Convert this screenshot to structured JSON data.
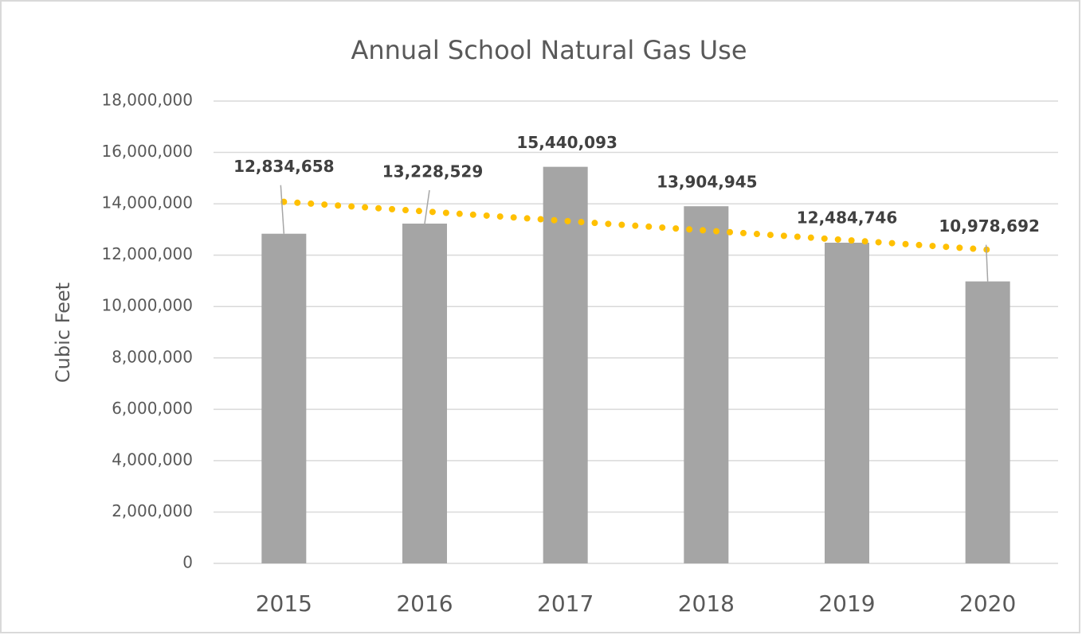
{
  "chart_data": {
    "type": "bar",
    "title": "Annual School Natural Gas Use",
    "y_label": "Cubic Feet",
    "categories": [
      "2015",
      "2016",
      "2017",
      "2018",
      "2019",
      "2020"
    ],
    "values": [
      12834658,
      13228529,
      15440093,
      13904945,
      12484746,
      10978692
    ],
    "value_labels": [
      "12,834,658",
      "13,228,529",
      "15,440,093",
      "13,904,945",
      "12,484,746",
      "10,978,692"
    ],
    "color": "#a5a5a5",
    "trendline": {
      "color": "#ffc000",
      "values": [
        14077000,
        13704000,
        13332000,
        12959000,
        12586000,
        12213000
      ]
    },
    "ylim": [
      0,
      18000000
    ],
    "yticks": [
      0,
      {
        "value": 2000000,
        "label": "2,000,000"
      },
      {
        "value": 4000000,
        "label": "4,000,000"
      },
      {
        "value": 6000000,
        "label": "6,000,000"
      },
      {
        "value": 8000000,
        "label": "8,000,000"
      },
      {
        "value": 10000000,
        "label": "10,000,000"
      },
      {
        "value": 12000000,
        "label": "12,000,000"
      },
      {
        "value": 14000000,
        "label": "14,000,000"
      },
      {
        "value": 16000000,
        "label": "16,000,000"
      },
      {
        "value": 18000000,
        "label": "18,000,000"
      }
    ],
    "grid": true
  }
}
